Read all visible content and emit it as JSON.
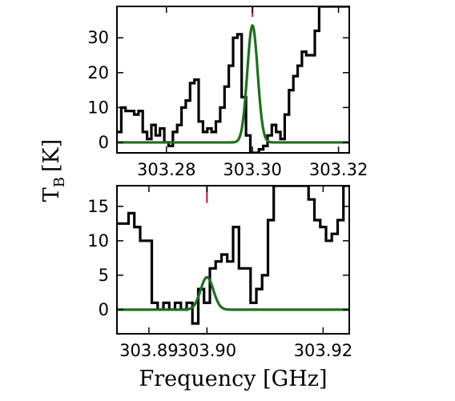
{
  "chart_data": {
    "type": "line",
    "shared_xlabel": "Frequency [GHz]",
    "shared_ylabel_main": "T",
    "shared_ylabel_sub": "B",
    "shared_ylabel_unit": "[K]",
    "colors": {
      "data": "#000000",
      "model": "#1f6e1f",
      "marker": "#cc2244"
    },
    "panels": [
      {
        "xlim": [
          303.2685,
          303.3225
        ],
        "ylim": [
          -3,
          39
        ],
        "xticks": [
          303.28,
          303.3,
          303.32
        ],
        "xtick_labels": [
          "303.28",
          "303.30",
          "303.32"
        ],
        "yticks": [
          0,
          10,
          20,
          30
        ],
        "ytick_labels": [
          "0",
          "10",
          "20",
          "30"
        ],
        "marker_x": 303.3,
        "marker_range": [
          36,
          39
        ],
        "series": [
          {
            "kind": "step",
            "role": "data",
            "x": [
              303.2685,
              303.2695,
              303.2705,
              303.2715,
              303.2725,
              303.2735,
              303.2745,
              303.2755,
              303.2765,
              303.2775,
              303.2785,
              303.2795,
              303.2805,
              303.2815,
              303.2825,
              303.2835,
              303.2845,
              303.2855,
              303.2865,
              303.2875,
              303.2885,
              303.2895,
              303.2905,
              303.2915,
              303.2925,
              303.2935,
              303.2945,
              303.2955,
              303.2965,
              303.2975,
              303.2985,
              303.2995,
              303.3005,
              303.3015,
              303.3025,
              303.3035,
              303.3045,
              303.3055,
              303.3065,
              303.3075,
              303.3085,
              303.3095,
              303.3105,
              303.3115,
              303.3125,
              303.3135,
              303.3145,
              303.3155,
              303.3165,
              303.3175,
              303.3185,
              303.3195
            ],
            "y": [
              3,
              10,
              9,
              9,
              8,
              9,
              3,
              1,
              5,
              2,
              4,
              0,
              -1,
              3,
              5,
              10,
              12,
              17,
              18,
              6,
              3,
              4,
              3,
              6,
              10,
              16,
              22,
              30,
              31,
              13,
              2,
              -3,
              -3,
              -2,
              -1,
              2,
              5,
              3,
              1,
              8,
              15,
              19,
              22,
              26,
              25,
              25,
              32,
              39,
              39,
              39,
              39,
              39
            ]
          },
          {
            "kind": "gaussian",
            "role": "model",
            "amplitude": 33.5,
            "center": 303.3,
            "sigma": 0.0012,
            "baseline": 0,
            "x_range": [
              303.2685,
              303.3225
            ]
          }
        ]
      },
      {
        "xlim": [
          303.8845,
          303.9245
        ],
        "ylim": [
          -3.5,
          18
        ],
        "xticks": [
          303.89,
          303.9,
          303.92
        ],
        "xtick_labels": [
          "303.89",
          "303.90",
          "303.92"
        ],
        "yticks": [
          0,
          5,
          10,
          15
        ],
        "ytick_labels": [
          "0",
          "5",
          "10",
          "15"
        ],
        "marker_x": 303.9,
        "marker_range": [
          15.5,
          18
        ],
        "series": [
          {
            "kind": "step",
            "role": "data",
            "x": [
              303.8845,
              303.8855,
              303.8865,
              303.8875,
              303.8885,
              303.8895,
              303.8905,
              303.8915,
              303.8925,
              303.8935,
              303.8945,
              303.8955,
              303.8965,
              303.8975,
              303.8985,
              303.8995,
              303.9005,
              303.9015,
              303.9025,
              303.9035,
              303.9045,
              303.9055,
              303.9065,
              303.9075,
              303.9085,
              303.9095,
              303.9105,
              303.9115,
              303.9125,
              303.9135,
              303.9145,
              303.9155,
              303.9165,
              303.9175,
              303.9185,
              303.9195,
              303.9205,
              303.9215,
              303.9225,
              303.9235
            ],
            "y": [
              12.5,
              12.5,
              14,
              12,
              10,
              10,
              1,
              0,
              1,
              0,
              1,
              0,
              1,
              -2,
              3,
              1,
              6,
              7,
              8,
              7,
              12,
              6,
              6,
              1,
              3,
              5,
              13,
              18,
              18,
              18,
              18,
              18,
              18,
              16,
              13,
              12,
              10,
              11,
              13,
              18
            ]
          },
          {
            "kind": "gaussian",
            "role": "model",
            "amplitude": 4.7,
            "center": 303.9,
            "sigma": 0.0011,
            "baseline": 0,
            "x_range": [
              303.8845,
              303.9245
            ]
          }
        ]
      }
    ]
  }
}
